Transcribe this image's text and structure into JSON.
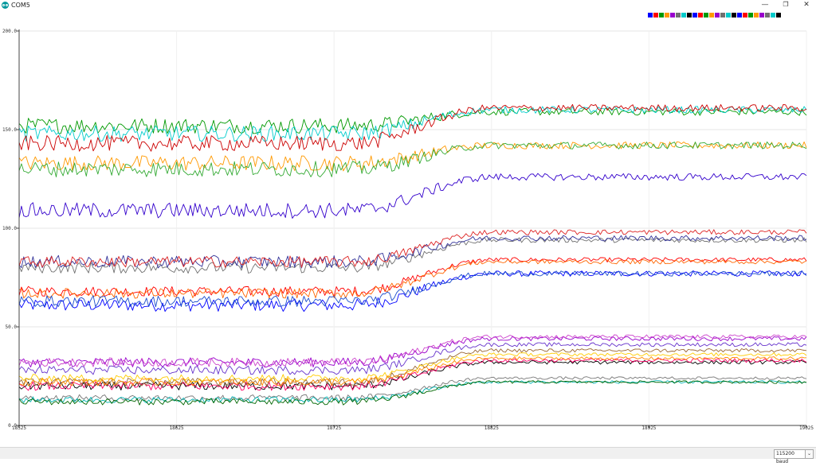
{
  "window": {
    "title": "COM5",
    "minimize_glyph": "—",
    "maximize_glyph": "❐",
    "close_glyph": "✕"
  },
  "icons": {
    "app": "arduino-icon"
  },
  "status": {
    "baud": "115200 baud",
    "dropdown_glyph": "⌄"
  },
  "chart_data": {
    "type": "line",
    "xlim": [
      18525,
      19025
    ],
    "ylim": [
      0,
      200
    ],
    "x_ticks": [
      "18525",
      "18625",
      "18725",
      "18825",
      "18925",
      "19025"
    ],
    "y_ticks": [
      "0.0",
      "50.0",
      "100.0",
      "150.0",
      "200.0"
    ],
    "grid": true,
    "legend": "top-right",
    "transition": {
      "start": 18737,
      "end": 18825
    },
    "series": [
      {
        "color": "#0000ff",
        "start": 61,
        "end": 77,
        "noise": 2.0
      },
      {
        "color": "#ff0000",
        "start": 68,
        "end": 84,
        "noise": 1.6
      },
      {
        "color": "#009900",
        "start": 152,
        "end": 159,
        "noise": 2.5
      },
      {
        "color": "#ff9900",
        "start": 133,
        "end": 142,
        "noise": 2.5
      },
      {
        "color": "#9900cc",
        "start": 32,
        "end": 44,
        "noise": 1.5
      },
      {
        "color": "#707070",
        "start": 80,
        "end": 94,
        "noise": 1.8
      },
      {
        "color": "#00cccc",
        "start": 148,
        "end": 160,
        "noise": 2.5
      },
      {
        "color": "#000000",
        "start": 20,
        "end": 32,
        "noise": 1.3
      },
      {
        "color": "#ff0066",
        "start": 20,
        "end": 33,
        "noise": 1.4
      },
      {
        "color": "#3300cc",
        "start": 109,
        "end": 126,
        "noise": 2.5
      },
      {
        "color": "#cc0000",
        "start": 143,
        "end": 161,
        "noise": 2.5
      },
      {
        "color": "#33aa33",
        "start": 130,
        "end": 142,
        "noise": 2.5
      },
      {
        "color": "#333399",
        "start": 83,
        "end": 95,
        "noise": 2.0
      },
      {
        "color": "#dd2222",
        "start": 83,
        "end": 98,
        "noise": 1.8
      },
      {
        "color": "#ff6600",
        "start": 67,
        "end": 83,
        "noise": 1.6
      },
      {
        "color": "#1a4ccc",
        "start": 63,
        "end": 77,
        "noise": 1.8
      },
      {
        "color": "#cc44cc",
        "start": 32,
        "end": 45,
        "noise": 1.4
      },
      {
        "color": "#6633cc",
        "start": 28,
        "end": 41,
        "noise": 1.4
      },
      {
        "color": "#996633",
        "start": 22,
        "end": 38,
        "noise": 1.3
      },
      {
        "color": "#ffcc00",
        "start": 24,
        "end": 36,
        "noise": 1.2
      },
      {
        "color": "#777777",
        "start": 14,
        "end": 24,
        "noise": 1.0
      },
      {
        "color": "#00b3b3",
        "start": 13,
        "end": 22,
        "noise": 1.0
      },
      {
        "color": "#006600",
        "start": 12,
        "end": 22,
        "noise": 1.0
      },
      {
        "color": "#ff8800",
        "start": 22,
        "end": 34,
        "noise": 1.2
      }
    ],
    "legend_colors": [
      "#0000ff",
      "#ff0000",
      "#009900",
      "#ff9900",
      "#9900cc",
      "#707070",
      "#00cccc",
      "#000000",
      "#0000ff",
      "#ff0000",
      "#009900",
      "#ff9900",
      "#9900cc",
      "#707070",
      "#00cccc",
      "#000000",
      "#0000ff",
      "#ff0000",
      "#009900",
      "#ff9900",
      "#9900cc",
      "#707070",
      "#00cccc",
      "#000000"
    ]
  }
}
